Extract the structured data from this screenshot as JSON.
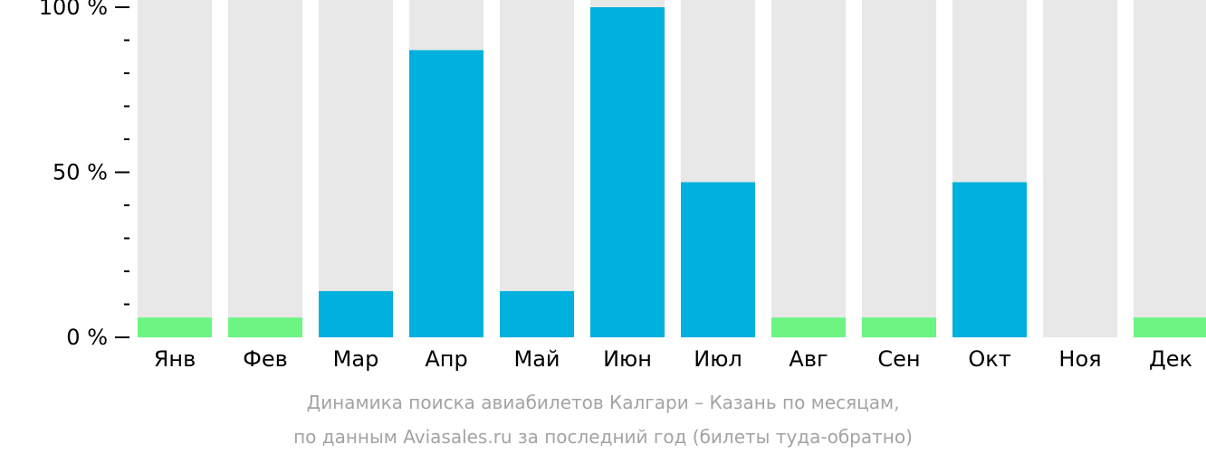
{
  "chart_data": {
    "type": "bar",
    "categories": [
      "Янв",
      "Фев",
      "Мар",
      "Апр",
      "Май",
      "Июн",
      "Июл",
      "Авг",
      "Сен",
      "Окт",
      "Ноя",
      "Дек"
    ],
    "values": [
      6,
      6,
      14,
      87,
      14,
      100,
      47,
      6,
      6,
      47,
      0,
      6
    ],
    "ylim": [
      0,
      100
    ],
    "yticks": [
      "0 %",
      "50 %",
      "100 %"
    ],
    "ytick_values": [
      0,
      50,
      100
    ],
    "minor_ticks": true,
    "background_bar_color": "#e8e8e8",
    "colors": {
      "normal": "#00b0dd",
      "low": "#6cf583",
      "axis": "#000000",
      "caption": "#a3a3a3"
    },
    "low_threshold": 10,
    "caption_line1": "Динамика поиска авиабилетов Калгари – Казань по месяцам,",
    "caption_line2": "по данным Aviasales.ru за последний год (билеты туда-обратно)"
  }
}
